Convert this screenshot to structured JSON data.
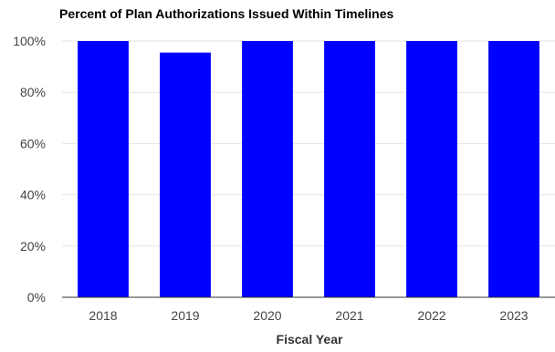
{
  "chart_data": {
    "type": "bar",
    "title": "Percent of Plan Authorizations Issued Within Timelines",
    "xlabel": "Fiscal Year",
    "ylabel": "",
    "categories": [
      "2018",
      "2019",
      "2020",
      "2021",
      "2022",
      "2023"
    ],
    "values": [
      100,
      95.5,
      100,
      100,
      100,
      100
    ],
    "ylim": [
      0,
      100
    ],
    "yticks": [
      0,
      20,
      40,
      60,
      80,
      100
    ],
    "ytick_labels": [
      "0%",
      "20%",
      "40%",
      "60%",
      "80%",
      "100%"
    ],
    "grid": true,
    "legend": "none",
    "bar_color": "#0000ff",
    "grid_color": "#e6e6e6",
    "axis_color": "#333333",
    "tick_label_color": "#444444",
    "title_color": "#000000"
  }
}
